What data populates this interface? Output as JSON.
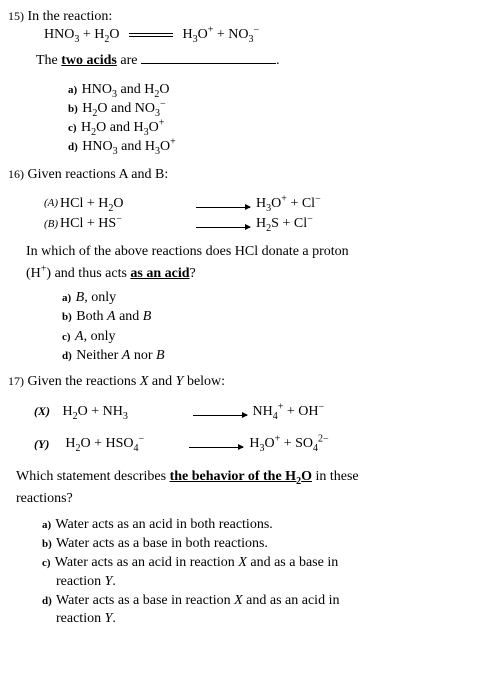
{
  "q15": {
    "num": "15)",
    "line1": "In the reaction:",
    "eq_left": "HNO<span class='sub'>3</span> +  H<span class='sub'>2</span>O",
    "eq_right": "H<span class='sub'>3</span>O<span class='sup'>+</span>  +   NO<span class='sub'>3</span><span class='sup'>−</span>",
    "line2_pre": "The ",
    "line2_ud": "two acids",
    "line2_post": " are  ",
    "line2_end": ".",
    "opts": {
      "a": "HNO<span class='sub'>3</span> and H<span class='sub'>2</span>O",
      "b": "H<span class='sub'>2</span>O and NO<span class='sub'>3</span><span class='sup'>−</span>",
      "c": "H<span class='sub'>2</span>O and H<span class='sub'>3</span>O<span class='sup'>+</span>",
      "d": "HNO<span class='sub'>3</span> and H<span class='sub'>3</span>O<span class='sup'>+</span>"
    }
  },
  "q16": {
    "num": "16)",
    "line1": "Given reactions A and B:",
    "A": {
      "lab": "(A)",
      "l": "HCl   +   H<span class='sub'>2</span>O",
      "r": "H<span class='sub'>3</span>O<span class='sup'>+</span>   +   Cl<span class='sup'>−</span>"
    },
    "B": {
      "lab": "(B)",
      "l": "HCl   +   HS<span class='sup'>−</span>",
      "r": "H<span class='sub'>2</span>S    +   Cl<span class='sup'>−</span>"
    },
    "q_l1": "In which of the above reactions does HCl donate a proton",
    "q_l2_pre": "(H<span class='sup'>+</span>) and thus acts ",
    "q_l2_ud": "as an acid",
    "q_l2_post": "?",
    "opts": {
      "a": "<span class='it'>B</span>, only",
      "b": "Both <span class='it'>A</span> and <span class='it'>B</span>",
      "c": "<span class='it'>A</span>, only",
      "d": "Neither <span class='it'>A</span> nor <span class='it'>B</span>"
    }
  },
  "q17": {
    "num": "17)",
    "line1": "Given the reactions <span class='it'>X</span> and <span class='it'>Y</span> below:",
    "X": {
      "lab": "(X)",
      "l": "H<span class='sub'>2</span>O + NH<span class='sub'>3</span>",
      "r": "NH<span class='sub'>4</span><span class='sup'>+</span>  +    OH<span class='sup'>−</span>"
    },
    "Y": {
      "lab": "(Y)",
      "l": "H<span class='sub'>2</span>O + HSO<span class='sub'>4</span><span class='sup'>−</span>",
      "r": "H<span class='sub'>3</span>O<span class='sup'>+</span>   +    SO<span class='sub'>4</span><span class='sup'>2−</span>"
    },
    "q_l1_pre": "Which statement describes ",
    "q_l1_ud": "the behavior of the H<span class='sub'>2</span>O",
    "q_l1_post": " in these",
    "q_l2": "reactions?",
    "opts": {
      "a": "Water acts as an acid in both reactions.",
      "b": "Water acts as a base in both reactions.",
      "c": "Water acts as an acid in reaction <span class='it'>X</span> and as a base in<br><span class='indent-hang'>reaction <span class='it'>Y</span>.</span>",
      "d": "Water acts as a base in reaction <span class='it'>X</span> and as an acid in<br><span class='indent-hang'>reaction <span class='it'>Y</span>.</span>"
    }
  }
}
